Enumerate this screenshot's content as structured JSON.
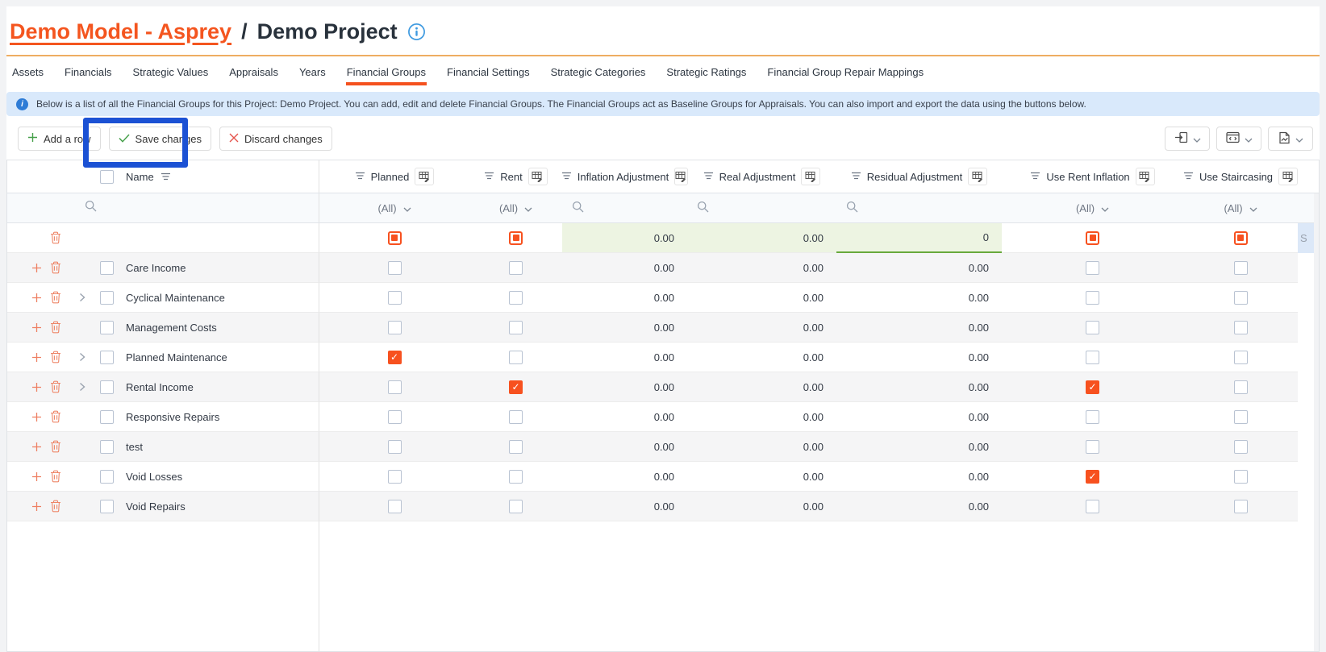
{
  "page_title": {
    "model": "Demo Model - Asprey",
    "separator": "/",
    "project": "Demo Project",
    "info_icon": "info-icon"
  },
  "tabs": [
    {
      "label": "Assets",
      "active": false
    },
    {
      "label": "Financials",
      "active": false
    },
    {
      "label": "Strategic Values",
      "active": false
    },
    {
      "label": "Appraisals",
      "active": false
    },
    {
      "label": "Years",
      "active": false
    },
    {
      "label": "Financial Groups",
      "active": true
    },
    {
      "label": "Financial Settings",
      "active": false
    },
    {
      "label": "Strategic Categories",
      "active": false
    },
    {
      "label": "Strategic Ratings",
      "active": false
    },
    {
      "label": "Financial Group Repair Mappings",
      "active": false
    }
  ],
  "banner": {
    "icon": "info-icon",
    "text": "Below is a list of all the Financial Groups for this Project: Demo Project. You can add, edit and delete Financial Groups. The Financial Groups act as Baseline Groups for Appraisals. You can also import and export the data using the buttons below."
  },
  "toolbar": {
    "add_row_label": "Add a row",
    "save_label": "Save changes",
    "discard_label": "Discard changes",
    "right_buttons": [
      {
        "icon": "import-data-icon"
      },
      {
        "icon": "code-window-icon"
      },
      {
        "icon": "export-file-icon"
      }
    ]
  },
  "annotation": {
    "color": "#1b51d4",
    "target": "save-changes-button"
  },
  "colors": {
    "accent_orange": "#f4511e",
    "title_link": "#f4551f",
    "title_rule": "#eead62",
    "banner_bg": "#d9e9fb",
    "edited_cell_bg": "#edf4e2",
    "edited_cell_underline": "#68a93c",
    "selected_cell_bg": "#dce8f8",
    "annotation_blue": "#1b51d4"
  },
  "grid": {
    "name_column": {
      "label": "Name"
    },
    "filter_placeholder_all": "(All)",
    "trailing_cell_text": "S",
    "columns": [
      {
        "key": "planned",
        "label": "Planned",
        "type": "bool"
      },
      {
        "key": "rent",
        "label": "Rent",
        "type": "bool"
      },
      {
        "key": "inflation",
        "label": "Inflation Adjustment",
        "type": "num"
      },
      {
        "key": "real",
        "label": "Real Adjustment",
        "type": "num"
      },
      {
        "key": "residual",
        "label": "Residual Adjustment",
        "type": "num"
      },
      {
        "key": "use_rent_inflation",
        "label": "Use Rent Inflation",
        "type": "bool"
      },
      {
        "key": "use_staircasing",
        "label": "Use Staircasing",
        "type": "bool"
      }
    ],
    "rows": [
      {
        "is_new": true,
        "name": "",
        "expandable": false,
        "values": {
          "planned": "indeterminate",
          "rent": "indeterminate",
          "inflation": "0.00",
          "real": "0.00",
          "residual": "0",
          "use_rent_inflation": "indeterminate",
          "use_staircasing": "indeterminate"
        },
        "edited_cells": [
          "inflation",
          "real",
          "residual"
        ],
        "focused_cell": "residual",
        "trailing_selected": true
      },
      {
        "is_new": false,
        "name": "Care Income",
        "expandable": false,
        "values": {
          "planned": "unchecked",
          "rent": "unchecked",
          "inflation": "0.00",
          "real": "0.00",
          "residual": "0.00",
          "use_rent_inflation": "unchecked",
          "use_staircasing": "unchecked"
        }
      },
      {
        "is_new": false,
        "name": "Cyclical Maintenance",
        "expandable": true,
        "values": {
          "planned": "unchecked",
          "rent": "unchecked",
          "inflation": "0.00",
          "real": "0.00",
          "residual": "0.00",
          "use_rent_inflation": "unchecked",
          "use_staircasing": "unchecked"
        }
      },
      {
        "is_new": false,
        "name": "Management Costs",
        "expandable": false,
        "values": {
          "planned": "unchecked",
          "rent": "unchecked",
          "inflation": "0.00",
          "real": "0.00",
          "residual": "0.00",
          "use_rent_inflation": "unchecked",
          "use_staircasing": "unchecked"
        }
      },
      {
        "is_new": false,
        "name": "Planned Maintenance",
        "expandable": true,
        "values": {
          "planned": "checked",
          "rent": "unchecked",
          "inflation": "0.00",
          "real": "0.00",
          "residual": "0.00",
          "use_rent_inflation": "unchecked",
          "use_staircasing": "unchecked"
        }
      },
      {
        "is_new": false,
        "name": "Rental Income",
        "expandable": true,
        "values": {
          "planned": "unchecked",
          "rent": "checked",
          "inflation": "0.00",
          "real": "0.00",
          "residual": "0.00",
          "use_rent_inflation": "checked",
          "use_staircasing": "unchecked"
        }
      },
      {
        "is_new": false,
        "name": "Responsive Repairs",
        "expandable": false,
        "values": {
          "planned": "unchecked",
          "rent": "unchecked",
          "inflation": "0.00",
          "real": "0.00",
          "residual": "0.00",
          "use_rent_inflation": "unchecked",
          "use_staircasing": "unchecked"
        }
      },
      {
        "is_new": false,
        "name": "test",
        "expandable": false,
        "values": {
          "planned": "unchecked",
          "rent": "unchecked",
          "inflation": "0.00",
          "real": "0.00",
          "residual": "0.00",
          "use_rent_inflation": "unchecked",
          "use_staircasing": "unchecked"
        }
      },
      {
        "is_new": false,
        "name": "Void Losses",
        "expandable": false,
        "values": {
          "planned": "unchecked",
          "rent": "unchecked",
          "inflation": "0.00",
          "real": "0.00",
          "residual": "0.00",
          "use_rent_inflation": "checked",
          "use_staircasing": "unchecked"
        }
      },
      {
        "is_new": false,
        "name": "Void Repairs",
        "expandable": false,
        "values": {
          "planned": "unchecked",
          "rent": "unchecked",
          "inflation": "0.00",
          "real": "0.00",
          "residual": "0.00",
          "use_rent_inflation": "unchecked",
          "use_staircasing": "unchecked"
        }
      }
    ]
  }
}
